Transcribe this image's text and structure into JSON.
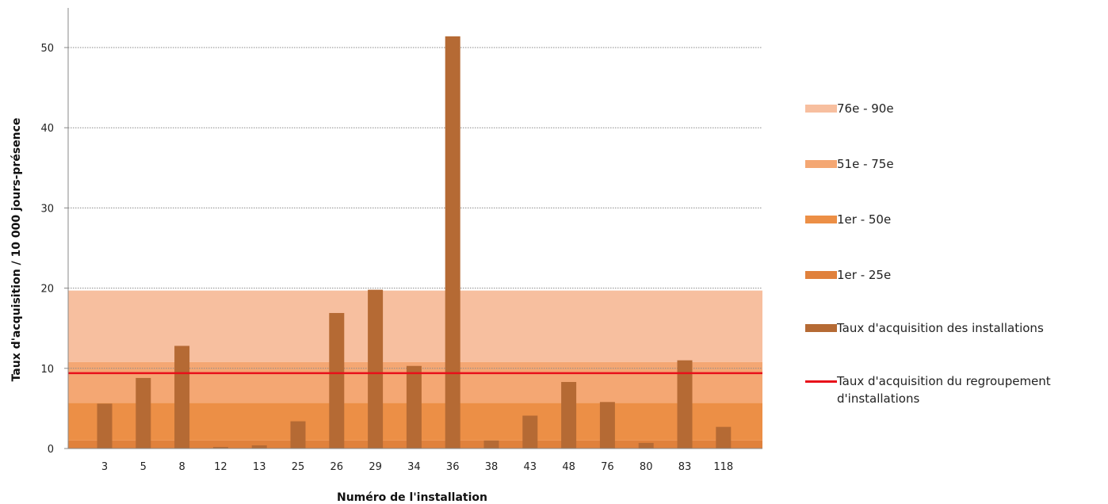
{
  "chart_data": {
    "type": "bar",
    "title": "",
    "xlabel": "Numéro de l'installation",
    "ylabel": "Taux d'acquisition  / 10 000 jours-présence",
    "ylim": [
      0,
      55
    ],
    "yticks": [
      0,
      10,
      20,
      30,
      40,
      50
    ],
    "grid": true,
    "legend_position": "right",
    "categories": [
      "3",
      "5",
      "8",
      "12",
      "13",
      "25",
      "26",
      "29",
      "34",
      "36",
      "38",
      "43",
      "48",
      "76",
      "80",
      "83",
      "118"
    ],
    "series": [
      {
        "name": "Taux d'acquisition des installations",
        "color": "#b56a34",
        "values": [
          5.6,
          8.8,
          12.8,
          0.2,
          0.4,
          3.4,
          16.9,
          19.8,
          10.3,
          51.4,
          1.0,
          4.1,
          8.3,
          5.8,
          0.7,
          11.0,
          2.7
        ]
      }
    ],
    "reference_line": {
      "name": "Taux d'acquisition du regroupement d'installations",
      "value": 9.4,
      "color": "#e8101a"
    },
    "bands": [
      {
        "name": "1er - 25e",
        "from": 0,
        "to": 1.0,
        "color": "#e0813c"
      },
      {
        "name": "1er - 50e",
        "from": 1.0,
        "to": 5.7,
        "color": "#ec8f46"
      },
      {
        "name": "51e - 75e",
        "from": 5.7,
        "to": 10.8,
        "color": "#f4a773"
      },
      {
        "name": "76e - 90e",
        "from": 10.8,
        "to": 19.7,
        "color": "#f7bf9f"
      }
    ],
    "legend": [
      {
        "label": "76e - 90e",
        "color": "#f7bf9f",
        "kind": "box"
      },
      {
        "label": "51e - 75e",
        "color": "#f4a773",
        "kind": "box"
      },
      {
        "label": "1er - 50e",
        "color": "#ec8f46",
        "kind": "box"
      },
      {
        "label": "1er - 25e",
        "color": "#e0813c",
        "kind": "box"
      },
      {
        "label": "Taux d'acquisition des installations",
        "color": "#b56a34",
        "kind": "box"
      },
      {
        "label": "Taux d'acquisition du regroupement d'installations",
        "color": "#e8101a",
        "kind": "line"
      }
    ]
  }
}
